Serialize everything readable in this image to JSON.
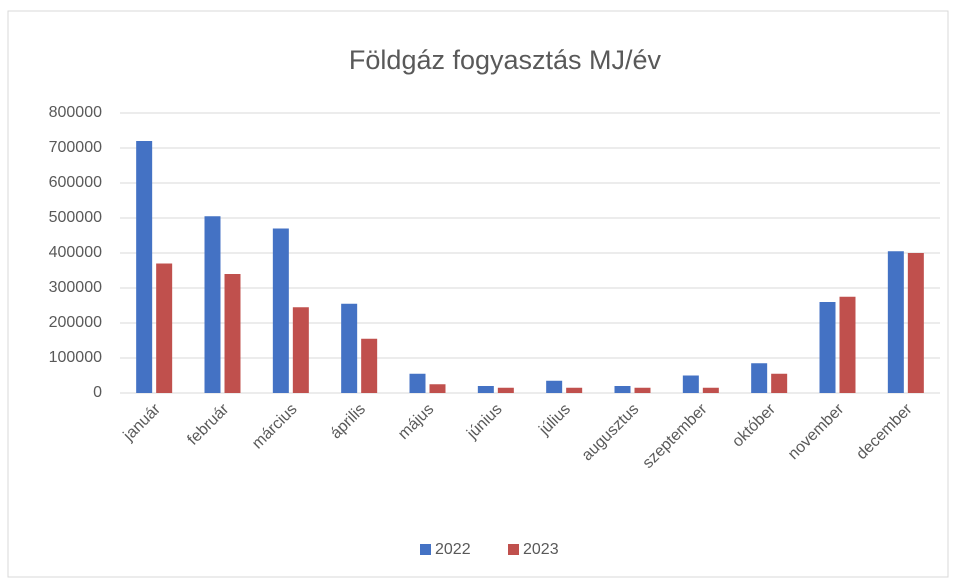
{
  "chart_data": {
    "type": "bar",
    "title": "Földgáz fogyasztás MJ/év",
    "categories": [
      "január",
      "február",
      "március",
      "április",
      "május",
      "június",
      "július",
      "augusztus",
      "szeptember",
      "október",
      "november",
      "december"
    ],
    "series": [
      {
        "name": "2022",
        "color": "#4472c4",
        "values": [
          720000,
          505000,
          470000,
          255000,
          55000,
          20000,
          35000,
          20000,
          50000,
          85000,
          260000,
          405000
        ]
      },
      {
        "name": "2023",
        "color": "#c0504d",
        "values": [
          370000,
          340000,
          245000,
          155000,
          25000,
          15000,
          15000,
          15000,
          15000,
          55000,
          275000,
          400000
        ]
      }
    ],
    "ylim": [
      0,
      800000
    ],
    "yticks": [
      0,
      100000,
      200000,
      300000,
      400000,
      500000,
      600000,
      700000,
      800000
    ],
    "grid": true,
    "legend": "bottom"
  }
}
